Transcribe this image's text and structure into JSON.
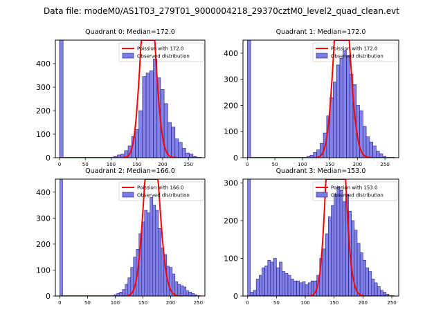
{
  "figure_title": "Data file: modeM0/AS1T03_279T01_9000004218_29370cztM0_level2_quad_clean.evt",
  "colors": {
    "bar_fill": "#7b7be8",
    "bar_edge": "#1f1f7a",
    "poisson_line": "#ff0000",
    "axes": "#000000"
  },
  "chart_data": [
    {
      "type": "bar",
      "title": "Quadrant 0: Median=172.0",
      "median": 172.0,
      "xlim": [
        -8,
        282
      ],
      "ylim": [
        0,
        500
      ],
      "xticks": [
        0,
        50,
        100,
        150,
        200,
        250
      ],
      "yticks": [
        0,
        100,
        200,
        300,
        400
      ],
      "bin_width": 7,
      "bins": [
        [
          0,
          500
        ],
        [
          105,
          5
        ],
        [
          112,
          12
        ],
        [
          119,
          15
        ],
        [
          126,
          30
        ],
        [
          133,
          50
        ],
        [
          140,
          90
        ],
        [
          147,
          120
        ],
        [
          154,
          200
        ],
        [
          161,
          345
        ],
        [
          168,
          360
        ],
        [
          175,
          370
        ],
        [
          182,
          420
        ],
        [
          189,
          340
        ],
        [
          196,
          290
        ],
        [
          203,
          230
        ],
        [
          210,
          150
        ],
        [
          217,
          130
        ],
        [
          224,
          80
        ],
        [
          231,
          65
        ],
        [
          238,
          40
        ],
        [
          245,
          20
        ],
        [
          252,
          15
        ],
        [
          259,
          5
        ]
      ],
      "poisson": {
        "lambda": 172.0,
        "x_range": [
          0,
          275
        ]
      },
      "legend": [
        "Poission with 172.0",
        "Observed distribution"
      ]
    },
    {
      "type": "bar",
      "title": "Quadrant 1: Median=172.0",
      "median": 172.0,
      "xlim": [
        -8,
        275
      ],
      "ylim": [
        0,
        450
      ],
      "xticks": [
        0,
        50,
        100,
        150,
        200,
        250
      ],
      "yticks": [
        0,
        100,
        200,
        300,
        400
      ],
      "bin_width": 6,
      "bins": [
        [
          0,
          450
        ],
        [
          108,
          5
        ],
        [
          114,
          10
        ],
        [
          120,
          20
        ],
        [
          126,
          30
        ],
        [
          132,
          55
        ],
        [
          138,
          95
        ],
        [
          144,
          160
        ],
        [
          150,
          230
        ],
        [
          156,
          290
        ],
        [
          162,
          355
        ],
        [
          168,
          380
        ],
        [
          174,
          410
        ],
        [
          180,
          390
        ],
        [
          186,
          320
        ],
        [
          192,
          280
        ],
        [
          198,
          200
        ],
        [
          204,
          180
        ],
        [
          210,
          120
        ],
        [
          216,
          80
        ],
        [
          222,
          60
        ],
        [
          228,
          45
        ],
        [
          234,
          25
        ],
        [
          240,
          15
        ],
        [
          246,
          5
        ]
      ],
      "poisson": {
        "lambda": 172.0,
        "x_range": [
          0,
          268
        ]
      },
      "legend": [
        "Poission with 172.0",
        "Observed distribution"
      ]
    },
    {
      "type": "bar",
      "title": "Quadrant 2: Median=166.0",
      "median": 166.0,
      "xlim": [
        -8,
        262
      ],
      "ylim": [
        0,
        450
      ],
      "xticks": [
        0,
        50,
        100,
        150,
        200,
        250
      ],
      "yticks": [
        0,
        100,
        200,
        300,
        400
      ],
      "bin_width": 5,
      "bins": [
        [
          0,
          450
        ],
        [
          98,
          5
        ],
        [
          103,
          10
        ],
        [
          108,
          15
        ],
        [
          113,
          25
        ],
        [
          118,
          45
        ],
        [
          123,
          70
        ],
        [
          128,
          110
        ],
        [
          133,
          150
        ],
        [
          138,
          180
        ],
        [
          143,
          240
        ],
        [
          148,
          285
        ],
        [
          153,
          330
        ],
        [
          158,
          320
        ],
        [
          163,
          380
        ],
        [
          168,
          350
        ],
        [
          173,
          330
        ],
        [
          178,
          260
        ],
        [
          183,
          185
        ],
        [
          188,
          160
        ],
        [
          193,
          115
        ],
        [
          198,
          110
        ],
        [
          203,
          85
        ],
        [
          208,
          55
        ],
        [
          213,
          45
        ],
        [
          218,
          40
        ],
        [
          223,
          35
        ],
        [
          228,
          20
        ],
        [
          233,
          15
        ],
        [
          238,
          10
        ],
        [
          243,
          5
        ]
      ],
      "poisson": {
        "lambda": 166.0,
        "x_range": [
          0,
          255
        ]
      },
      "legend": [
        "Poission with 166.0",
        "Observed distribution"
      ]
    },
    {
      "type": "bar",
      "title": "Quadrant 3: Median=153.0",
      "median": 153.0,
      "xlim": [
        -8,
        262
      ],
      "ylim": [
        0,
        310
      ],
      "xticks": [
        0,
        50,
        100,
        150,
        200,
        250
      ],
      "yticks": [
        0,
        100,
        200,
        300
      ],
      "bin_width": 5,
      "bins": [
        [
          0,
          310
        ],
        [
          5,
          10
        ],
        [
          10,
          15
        ],
        [
          15,
          45
        ],
        [
          20,
          55
        ],
        [
          25,
          75
        ],
        [
          30,
          80
        ],
        [
          35,
          95
        ],
        [
          40,
          90
        ],
        [
          45,
          100
        ],
        [
          50,
          75
        ],
        [
          55,
          90
        ],
        [
          60,
          65
        ],
        [
          65,
          60
        ],
        [
          70,
          55
        ],
        [
          75,
          45
        ],
        [
          80,
          40
        ],
        [
          85,
          40
        ],
        [
          90,
          35
        ],
        [
          95,
          38
        ],
        [
          100,
          30
        ],
        [
          105,
          35
        ],
        [
          110,
          40
        ],
        [
          115,
          40
        ],
        [
          120,
          55
        ],
        [
          125,
          100
        ],
        [
          130,
          125
        ],
        [
          135,
          165
        ],
        [
          140,
          210
        ],
        [
          145,
          240
        ],
        [
          150,
          270
        ],
        [
          155,
          290
        ],
        [
          160,
          280
        ],
        [
          165,
          250
        ],
        [
          170,
          270
        ],
        [
          175,
          225
        ],
        [
          180,
          200
        ],
        [
          185,
          175
        ],
        [
          190,
          140
        ],
        [
          195,
          115
        ],
        [
          200,
          95
        ],
        [
          205,
          75
        ],
        [
          210,
          65
        ],
        [
          215,
          45
        ],
        [
          220,
          35
        ],
        [
          225,
          25
        ],
        [
          230,
          15
        ],
        [
          235,
          10
        ],
        [
          240,
          5
        ]
      ],
      "poisson": {
        "lambda": 153.0,
        "x_range": [
          0,
          255
        ]
      },
      "legend": [
        "Poission with 153.0",
        "Observed distribution"
      ]
    }
  ]
}
